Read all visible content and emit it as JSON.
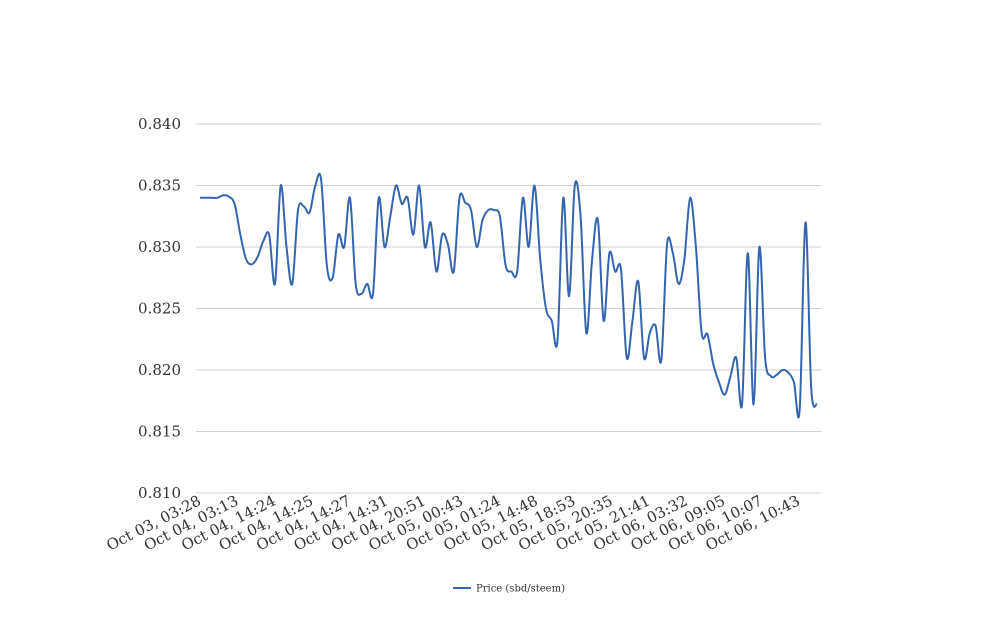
{
  "chart_data": {
    "type": "line",
    "title": "",
    "xlabel": "",
    "ylabel": "",
    "ylim": [
      0.81,
      0.84
    ],
    "yticks": [
      "0.810",
      "0.815",
      "0.820",
      "0.825",
      "0.830",
      "0.835",
      "0.840"
    ],
    "ytick_values": [
      0.81,
      0.815,
      0.82,
      0.825,
      0.83,
      0.835,
      0.84
    ],
    "xticks": [
      "Oct 03, 03:28",
      "Oct 04, 03:13",
      "Oct 04, 14:24",
      "Oct 04, 14:25",
      "Oct 04, 14:27",
      "Oct 04, 14:31",
      "Oct 04, 20:51",
      "Oct 05, 00:43",
      "Oct 05, 01:24",
      "Oct 05, 14:48",
      "Oct 05, 18:53",
      "Oct 05, 20:35",
      "Oct 05, 21:41",
      "Oct 06, 03:32",
      "Oct 06, 09:05",
      "Oct 06, 10:07",
      "Oct 06, 10:43"
    ],
    "grid": true,
    "legend_position": "bottom",
    "line_color": "#3565b0",
    "series": [
      {
        "name": "Price (sbd/steem)",
        "values": [
          0.834,
          0.834,
          0.834,
          0.834,
          0.8342,
          0.8341,
          0.8335,
          0.831,
          0.829,
          0.8286,
          0.8292,
          0.8305,
          0.831,
          0.827,
          0.835,
          0.83,
          0.827,
          0.833,
          0.8333,
          0.8328,
          0.835,
          0.8355,
          0.8285,
          0.8275,
          0.831,
          0.83,
          0.834,
          0.827,
          0.8262,
          0.827,
          0.8262,
          0.834,
          0.83,
          0.8325,
          0.835,
          0.8335,
          0.834,
          0.831,
          0.835,
          0.83,
          0.832,
          0.828,
          0.831,
          0.8302,
          0.828,
          0.834,
          0.8336,
          0.833,
          0.83,
          0.8322,
          0.833,
          0.833,
          0.8325,
          0.8285,
          0.828,
          0.828,
          0.834,
          0.83,
          0.835,
          0.829,
          0.825,
          0.824,
          0.8224,
          0.834,
          0.826,
          0.835,
          0.8325,
          0.823,
          0.829,
          0.8322,
          0.824,
          0.8295,
          0.828,
          0.8282,
          0.821,
          0.824,
          0.8272,
          0.821,
          0.823,
          0.8236,
          0.8208,
          0.8302,
          0.8295,
          0.827,
          0.829,
          0.834,
          0.83,
          0.823,
          0.8229,
          0.8205,
          0.819,
          0.818,
          0.8195,
          0.821,
          0.8172,
          0.8295,
          0.8172,
          0.83,
          0.821,
          0.8195,
          0.8196,
          0.82,
          0.8198,
          0.819,
          0.8168,
          0.832,
          0.8185,
          0.8172
        ]
      }
    ]
  }
}
